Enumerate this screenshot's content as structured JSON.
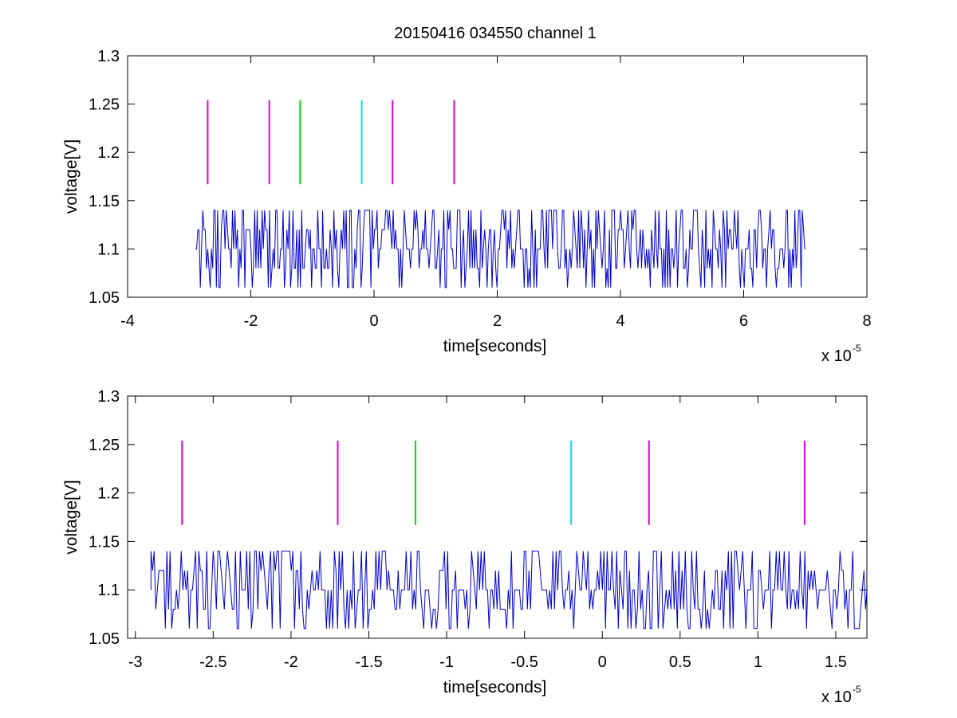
{
  "figure": {
    "title": "20150416 034550 channel 1"
  },
  "chart_data": [
    {
      "type": "line",
      "title": "20150416 034550 channel 1",
      "xlabel": "time[seconds]",
      "ylabel": "voltage[V]",
      "x_multiplier_label": "x 10",
      "x_multiplier_exp": "-5",
      "xlim": [
        -4,
        8
      ],
      "ylim": [
        1.05,
        1.3
      ],
      "xticks": [
        -4,
        -2,
        0,
        2,
        4,
        6,
        8
      ],
      "xtick_labels": [
        "-4",
        "-2",
        "0",
        "2",
        "4",
        "6",
        "8"
      ],
      "yticks": [
        1.05,
        1.1,
        1.15,
        1.2,
        1.25,
        1.3
      ],
      "ytick_labels": [
        "1.05",
        "1.1",
        "1.15",
        "1.2",
        "1.25",
        "1.3"
      ],
      "grid": false,
      "signal": {
        "color": "#0000cc",
        "x_start": -2.9,
        "x_end": 7.0,
        "levels": [
          1.06,
          1.08,
          1.1,
          1.12,
          1.14
        ],
        "baseline": 1.1
      },
      "markers": [
        {
          "x": -2.7,
          "y0": 1.167,
          "y1": 1.254,
          "color": "#e000e0"
        },
        {
          "x": -1.7,
          "y0": 1.167,
          "y1": 1.254,
          "color": "#e000e0"
        },
        {
          "x": -1.2,
          "y0": 1.167,
          "y1": 1.254,
          "color": "#00dd00"
        },
        {
          "x": -0.2,
          "y0": 1.167,
          "y1": 1.254,
          "color": "#00e0e0"
        },
        {
          "x": 0.3,
          "y0": 1.167,
          "y1": 1.254,
          "color": "#e000e0"
        },
        {
          "x": 1.3,
          "y0": 1.167,
          "y1": 1.254,
          "color": "#e000e0"
        }
      ]
    },
    {
      "type": "line",
      "title": "",
      "xlabel": "time[seconds]",
      "ylabel": "voltage[V]",
      "x_multiplier_label": "x 10",
      "x_multiplier_exp": "-5",
      "xlim": [
        -3.05,
        1.7
      ],
      "ylim": [
        1.05,
        1.3
      ],
      "xticks": [
        -3,
        -2.5,
        -2,
        -1.5,
        -1,
        -0.5,
        0,
        0.5,
        1,
        1.5
      ],
      "xtick_labels": [
        "-3",
        "-2.5",
        "-2",
        "-1.5",
        "-1",
        "-0.5",
        "0",
        "0.5",
        "1",
        "1.5"
      ],
      "yticks": [
        1.05,
        1.1,
        1.15,
        1.2,
        1.25,
        1.3
      ],
      "ytick_labels": [
        "1.05",
        "1.1",
        "1.15",
        "1.2",
        "1.25",
        "1.3"
      ],
      "grid": false,
      "signal": {
        "color": "#0000cc",
        "x_start": -2.9,
        "x_end": 1.7,
        "levels": [
          1.06,
          1.08,
          1.1,
          1.12,
          1.14
        ],
        "baseline": 1.1
      },
      "markers": [
        {
          "x": -2.7,
          "y0": 1.167,
          "y1": 1.254,
          "color": "#e000e0"
        },
        {
          "x": -1.7,
          "y0": 1.167,
          "y1": 1.254,
          "color": "#e000e0"
        },
        {
          "x": -1.2,
          "y0": 1.167,
          "y1": 1.254,
          "color": "#00dd00"
        },
        {
          "x": -0.2,
          "y0": 1.167,
          "y1": 1.254,
          "color": "#00e0e0"
        },
        {
          "x": 0.3,
          "y0": 1.167,
          "y1": 1.254,
          "color": "#e000e0"
        },
        {
          "x": 1.3,
          "y0": 1.167,
          "y1": 1.254,
          "color": "#e000e0"
        }
      ]
    }
  ]
}
